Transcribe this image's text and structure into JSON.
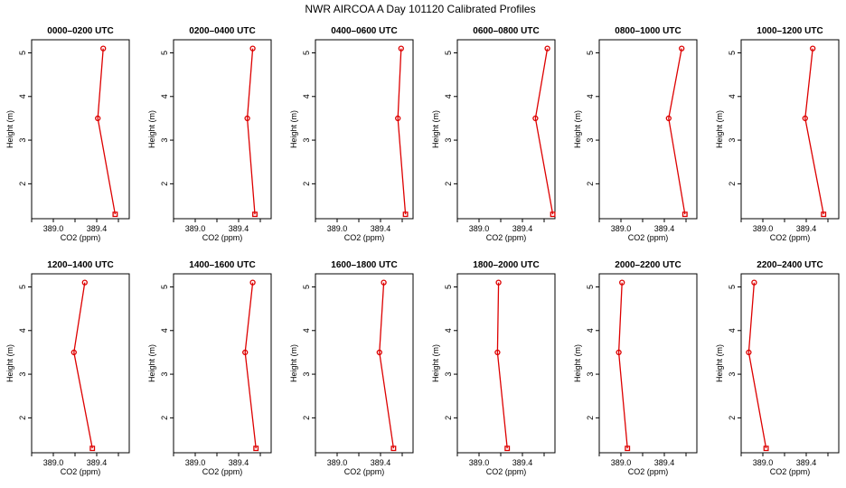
{
  "figure": {
    "title": "NWR AIRCOA A  Day 101120  Calibrated Profiles"
  },
  "chart_data": {
    "type": "line",
    "xlabel": "CO2 (ppm)",
    "ylabel": "Height (m)",
    "xlim": [
      388.8,
      389.7
    ],
    "ylim": [
      1.2,
      5.3
    ],
    "xticks": [
      388.8,
      389.0,
      389.2,
      389.4,
      389.6
    ],
    "xtick_labels": [
      "389.0",
      "389.4"
    ],
    "xtick_label_values": [
      389.0,
      389.4
    ],
    "yticks": [
      2,
      3,
      4,
      5
    ],
    "ytick_labels": [
      "2",
      "3",
      "4",
      "5"
    ],
    "line_color": "#dd0000",
    "marker_color": "#dd0000",
    "heights": [
      1.3,
      3.5,
      5.1
    ],
    "panels": [
      {
        "title": "0000–0200 UTC",
        "co2": [
          389.57,
          389.41,
          389.46
        ]
      },
      {
        "title": "0200–0400 UTC",
        "co2": [
          389.55,
          389.48,
          389.53
        ]
      },
      {
        "title": "0400–0600 UTC",
        "co2": [
          389.63,
          389.56,
          389.59
        ]
      },
      {
        "title": "0600–0800 UTC",
        "co2": [
          389.68,
          389.52,
          389.63
        ]
      },
      {
        "title": "0800–1000 UTC",
        "co2": [
          389.59,
          389.44,
          389.56
        ]
      },
      {
        "title": "1000–1200 UTC",
        "co2": [
          389.56,
          389.39,
          389.46
        ]
      },
      {
        "title": "1200–1400 UTC",
        "co2": [
          389.36,
          389.19,
          389.29
        ]
      },
      {
        "title": "1400–1600 UTC",
        "co2": [
          389.56,
          389.46,
          389.53
        ]
      },
      {
        "title": "1600–1800 UTC",
        "co2": [
          389.52,
          389.39,
          389.43
        ]
      },
      {
        "title": "1800–2000 UTC",
        "co2": [
          389.26,
          389.17,
          389.18
        ]
      },
      {
        "title": "2000–2200 UTC",
        "co2": [
          389.06,
          388.98,
          389.01
        ]
      },
      {
        "title": "2200–2400 UTC",
        "co2": [
          389.03,
          388.87,
          388.92
        ]
      }
    ]
  }
}
